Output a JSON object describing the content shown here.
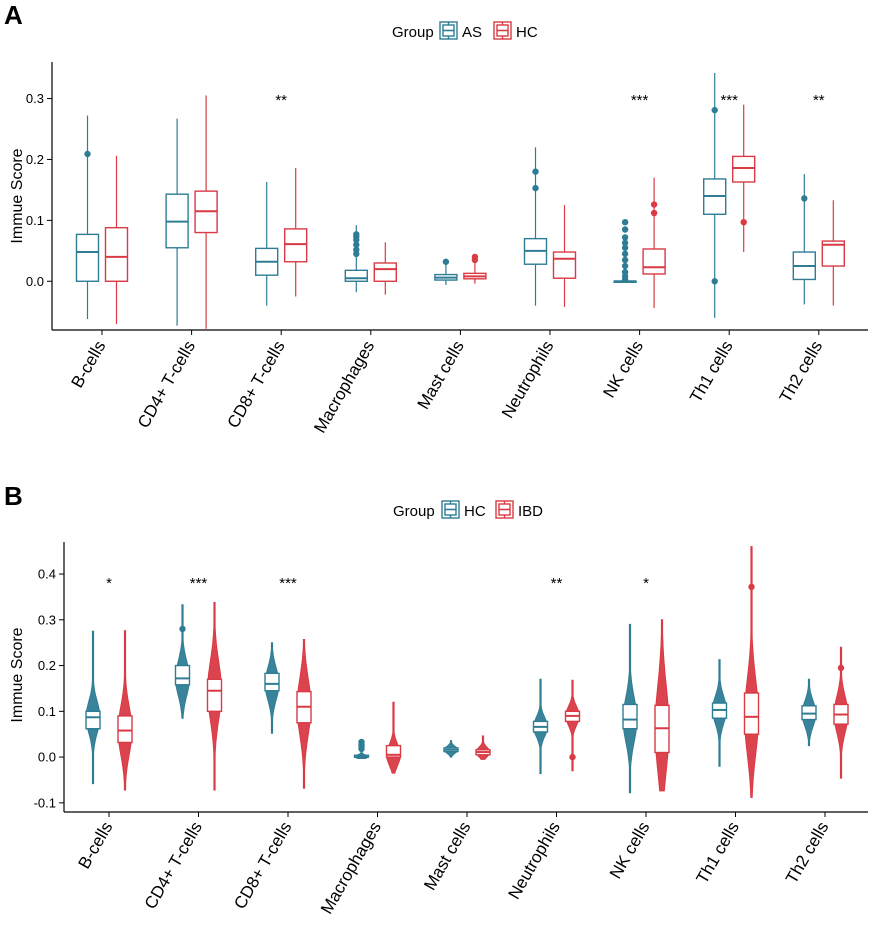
{
  "colors": {
    "AS": "#2e7d95",
    "HC_A": "#d93a44",
    "HC_B": "#2e7d95",
    "IBD": "#d93a44"
  },
  "chart_data": [
    {
      "panel": "A",
      "type": "box",
      "legend_title": "Group",
      "legend": [
        "AS",
        "HC"
      ],
      "ylabel": "Immue Score",
      "ylim": [
        -0.08,
        0.36
      ],
      "yticks": [
        0.0,
        0.1,
        0.2,
        0.3
      ],
      "ytick_labels": [
        "0.0",
        "0.1",
        "0.2",
        "0.3"
      ],
      "categories": [
        "B-cells",
        "CD4+ T-cells",
        "CD8+ T-cells",
        "Macrophages",
        "Mast cells",
        "Neutrophils",
        "NK cells",
        "Th1 cells",
        "Th2 cells"
      ],
      "significance": [
        "",
        "",
        "**",
        "",
        "",
        "",
        "***",
        "***",
        "**"
      ],
      "series": [
        {
          "name": "AS",
          "stats": [
            {
              "ymin": -0.062,
              "q1": 0.0,
              "med": 0.048,
              "q3": 0.077,
              "ymax": 0.272,
              "outliers": [
                0.209
              ]
            },
            {
              "ymin": -0.073,
              "q1": 0.055,
              "med": 0.098,
              "q3": 0.143,
              "ymax": 0.267,
              "outliers": []
            },
            {
              "ymin": -0.04,
              "q1": 0.01,
              "med": 0.032,
              "q3": 0.054,
              "ymax": 0.163,
              "outliers": []
            },
            {
              "ymin": -0.018,
              "q1": 0.0,
              "med": 0.005,
              "q3": 0.018,
              "ymax": 0.092,
              "outliers": [
                0.045,
                0.052,
                0.06,
                0.068,
                0.073,
                0.077
              ]
            },
            {
              "ymin": -0.006,
              "q1": 0.002,
              "med": 0.006,
              "q3": 0.011,
              "ymax": 0.037,
              "outliers": [
                0.032
              ]
            },
            {
              "ymin": -0.04,
              "q1": 0.028,
              "med": 0.05,
              "q3": 0.07,
              "ymax": 0.22,
              "outliers": [
                0.153,
                0.18
              ]
            },
            {
              "ymin": 0.0,
              "q1": 0.0,
              "med": 0.0,
              "q3": 0.0,
              "ymax": 0.0,
              "outliers": [
                0.003,
                0.008,
                0.015,
                0.025,
                0.035,
                0.045,
                0.055,
                0.063,
                0.072,
                0.085,
                0.097
              ]
            },
            {
              "ymin": -0.06,
              "q1": 0.11,
              "med": 0.14,
              "q3": 0.168,
              "ymax": 0.342,
              "outliers": [
                0.0,
                0.281
              ]
            },
            {
              "ymin": -0.038,
              "q1": 0.003,
              "med": 0.025,
              "q3": 0.048,
              "ymax": 0.176,
              "outliers": [
                0.136
              ]
            }
          ]
        },
        {
          "name": "HC",
          "stats": [
            {
              "ymin": -0.07,
              "q1": 0.0,
              "med": 0.04,
              "q3": 0.088,
              "ymax": 0.206,
              "outliers": []
            },
            {
              "ymin": -0.078,
              "q1": 0.08,
              "med": 0.115,
              "q3": 0.148,
              "ymax": 0.305,
              "outliers": []
            },
            {
              "ymin": -0.025,
              "q1": 0.032,
              "med": 0.061,
              "q3": 0.086,
              "ymax": 0.186,
              "outliers": []
            },
            {
              "ymin": -0.022,
              "q1": 0.0,
              "med": 0.02,
              "q3": 0.03,
              "ymax": 0.064,
              "outliers": []
            },
            {
              "ymin": -0.004,
              "q1": 0.004,
              "med": 0.008,
              "q3": 0.013,
              "ymax": 0.04,
              "outliers": [
                0.035,
                0.04
              ]
            },
            {
              "ymin": -0.042,
              "q1": 0.005,
              "med": 0.037,
              "q3": 0.048,
              "ymax": 0.125,
              "outliers": []
            },
            {
              "ymin": -0.044,
              "q1": 0.012,
              "med": 0.023,
              "q3": 0.053,
              "ymax": 0.17,
              "outliers": [
                0.112,
                0.126
              ]
            },
            {
              "ymin": 0.048,
              "q1": 0.163,
              "med": 0.186,
              "q3": 0.205,
              "ymax": 0.29,
              "outliers": [
                0.097
              ]
            },
            {
              "ymin": -0.04,
              "q1": 0.025,
              "med": 0.06,
              "q3": 0.066,
              "ymax": 0.133,
              "outliers": []
            }
          ]
        }
      ]
    },
    {
      "panel": "B",
      "type": "violin+box",
      "legend_title": "Group",
      "legend": [
        "HC",
        "IBD"
      ],
      "ylabel": "Immue Score",
      "ylim": [
        -0.12,
        0.47
      ],
      "yticks": [
        -0.1,
        0.0,
        0.1,
        0.2,
        0.3,
        0.4
      ],
      "ytick_labels": [
        "-0.1",
        "0.0",
        "0.1",
        "0.2",
        "0.3",
        "0.4"
      ],
      "categories": [
        "B-cells",
        "CD4+ T-cells",
        "CD8+ T-cells",
        "Macrophages",
        "Mast cells",
        "Neutrophils",
        "NK cells",
        "Th1 cells",
        "Th2 cells"
      ],
      "significance": [
        "*",
        "***",
        "***",
        "",
        "",
        "**",
        "*",
        "",
        ""
      ],
      "series": [
        {
          "name": "HC",
          "stats": [
            {
              "ymin": -0.058,
              "q1": 0.062,
              "med": 0.087,
              "q3": 0.1,
              "ymax": 0.275,
              "outliers": []
            },
            {
              "ymin": 0.085,
              "q1": 0.158,
              "med": 0.172,
              "q3": 0.2,
              "ymax": 0.333,
              "outliers": [
                0.28
              ]
            },
            {
              "ymin": 0.052,
              "q1": 0.145,
              "med": 0.16,
              "q3": 0.183,
              "ymax": 0.25,
              "outliers": []
            },
            {
              "ymin": -0.003,
              "q1": 0.0,
              "med": 0.001,
              "q3": 0.004,
              "ymax": 0.036,
              "outliers": [
                0.018,
                0.023,
                0.028,
                0.033
              ]
            },
            {
              "ymin": 0.0,
              "q1": 0.012,
              "med": 0.016,
              "q3": 0.02,
              "ymax": 0.036,
              "outliers": []
            },
            {
              "ymin": -0.036,
              "q1": 0.055,
              "med": 0.066,
              "q3": 0.078,
              "ymax": 0.17,
              "outliers": []
            },
            {
              "ymin": -0.078,
              "q1": 0.062,
              "med": 0.082,
              "q3": 0.115,
              "ymax": 0.29,
              "outliers": []
            },
            {
              "ymin": -0.02,
              "q1": 0.085,
              "med": 0.103,
              "q3": 0.118,
              "ymax": 0.213,
              "outliers": []
            },
            {
              "ymin": 0.025,
              "q1": 0.082,
              "med": 0.095,
              "q3": 0.112,
              "ymax": 0.17,
              "outliers": []
            }
          ]
        },
        {
          "name": "IBD",
          "stats": [
            {
              "ymin": -0.072,
              "q1": 0.032,
              "med": 0.058,
              "q3": 0.09,
              "ymax": 0.276,
              "outliers": []
            },
            {
              "ymin": -0.072,
              "q1": 0.1,
              "med": 0.145,
              "q3": 0.17,
              "ymax": 0.338,
              "outliers": []
            },
            {
              "ymin": -0.068,
              "q1": 0.075,
              "med": 0.11,
              "q3": 0.143,
              "ymax": 0.257,
              "outliers": []
            },
            {
              "ymin": -0.035,
              "q1": 0.0,
              "med": 0.005,
              "q3": 0.025,
              "ymax": 0.12,
              "outliers": []
            },
            {
              "ymin": -0.005,
              "q1": 0.005,
              "med": 0.011,
              "q3": 0.016,
              "ymax": 0.046,
              "outliers": []
            },
            {
              "ymin": -0.03,
              "q1": 0.078,
              "med": 0.09,
              "q3": 0.1,
              "ymax": 0.168,
              "outliers": [
                0.0
              ]
            },
            {
              "ymin": -0.074,
              "q1": 0.01,
              "med": 0.063,
              "q3": 0.113,
              "ymax": 0.3,
              "outliers": []
            },
            {
              "ymin": -0.088,
              "q1": 0.05,
              "med": 0.088,
              "q3": 0.14,
              "ymax": 0.46,
              "outliers": [
                0.372
              ]
            },
            {
              "ymin": -0.046,
              "q1": 0.072,
              "med": 0.093,
              "q3": 0.115,
              "ymax": 0.24,
              "outliers": [
                0.195
              ]
            }
          ]
        }
      ]
    }
  ]
}
